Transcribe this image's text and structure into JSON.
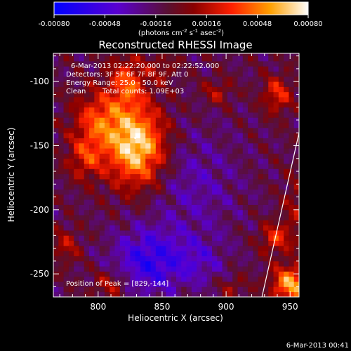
{
  "chart_data": {
    "type": "heatmap",
    "title": "Reconstructed RHESSI Image",
    "xlabel": "Heliocentric X (arcsec)",
    "ylabel": "Heliocentric Y (arcsec)",
    "xlim": [
      765,
      957
    ],
    "ylim": [
      -268,
      -78
    ],
    "x_ticks": [
      "800",
      "850",
      "900",
      "950"
    ],
    "x_tick_values": [
      800,
      850,
      900,
      950
    ],
    "y_ticks": [
      "-100",
      "-150",
      "-200",
      "-250"
    ],
    "y_tick_values": [
      -100,
      -150,
      -200,
      -250
    ],
    "colorbar": {
      "range": [
        -0.0008,
        0.0008
      ],
      "tick_labels": [
        "-0.00080",
        "-0.00048",
        "-0.00016",
        "0.00016",
        "0.00048",
        "0.00080"
      ],
      "tick_values": [
        -0.0008,
        -0.00048,
        -0.00016,
        0.00016,
        0.00048,
        0.0008
      ],
      "unit_label_parts": [
        "(photons cm",
        "-2",
        " s",
        "-1",
        " asec",
        "-2",
        ")"
      ],
      "colors": [
        "#0000ff",
        "#6a00c0",
        "#6a0f0f",
        "#ff0000",
        "#ffa000",
        "#ffffff"
      ]
    },
    "annotations": {
      "time_range": "6-Mar-2013 02:22:20.000 to 02:22:52.000",
      "detectors": "Detectors: 3F 5F 6F 7F 8F 9F, Att 0",
      "energy": "Energy Range: 25.0 - 50.0 keV",
      "clean": "Clean",
      "counts": "Total counts: 1.09E+03",
      "peak": "Position of Peak = [829,-144]"
    },
    "peak_position": [
      829,
      -144
    ],
    "limb_line": [
      [
        928,
        -268
      ],
      [
        957,
        -140
      ]
    ],
    "sources": [
      {
        "x": 830,
        "y": -150,
        "amp": 0.00085,
        "sx": 16,
        "sy": 22
      },
      {
        "x": 800,
        "y": -130,
        "amp": 0.00045,
        "sx": 14,
        "sy": 16
      },
      {
        "x": 790,
        "y": -160,
        "amp": 0.00035,
        "sx": 10,
        "sy": 12
      },
      {
        "x": 823,
        "y": -100,
        "amp": 0.00045,
        "sx": 10,
        "sy": 14
      },
      {
        "x": 893,
        "y": -108,
        "amp": 0.00025,
        "sx": 8,
        "sy": 7
      },
      {
        "x": 940,
        "y": -110,
        "amp": 0.0004,
        "sx": 8,
        "sy": 10
      },
      {
        "x": 955,
        "y": -200,
        "amp": 0.0002,
        "sx": 8,
        "sy": 20
      },
      {
        "x": 950,
        "y": -258,
        "amp": 0.0007,
        "sx": 10,
        "sy": 10
      },
      {
        "x": 938,
        "y": -222,
        "amp": 0.0004,
        "sx": 8,
        "sy": 8
      },
      {
        "x": 775,
        "y": -228,
        "amp": 0.00025,
        "sx": 8,
        "sy": 10
      },
      {
        "x": 810,
        "y": -258,
        "amp": 0.0003,
        "sx": 10,
        "sy": 8
      },
      {
        "x": 850,
        "y": -90,
        "amp": 0.0002,
        "sx": 8,
        "sy": 8
      },
      {
        "x": 905,
        "y": -260,
        "amp": 0.0002,
        "sx": 8,
        "sy": 6
      },
      {
        "x": 840,
        "y": -240,
        "amp": -0.00045,
        "sx": 20,
        "sy": 18
      },
      {
        "x": 875,
        "y": -180,
        "amp": -0.0002,
        "sx": 25,
        "sy": 30
      },
      {
        "x": 880,
        "y": -240,
        "amp": -0.0002,
        "sx": 14,
        "sy": 14
      }
    ]
  },
  "footer": {
    "timestamp": "6-Mar-2013 00:41"
  }
}
